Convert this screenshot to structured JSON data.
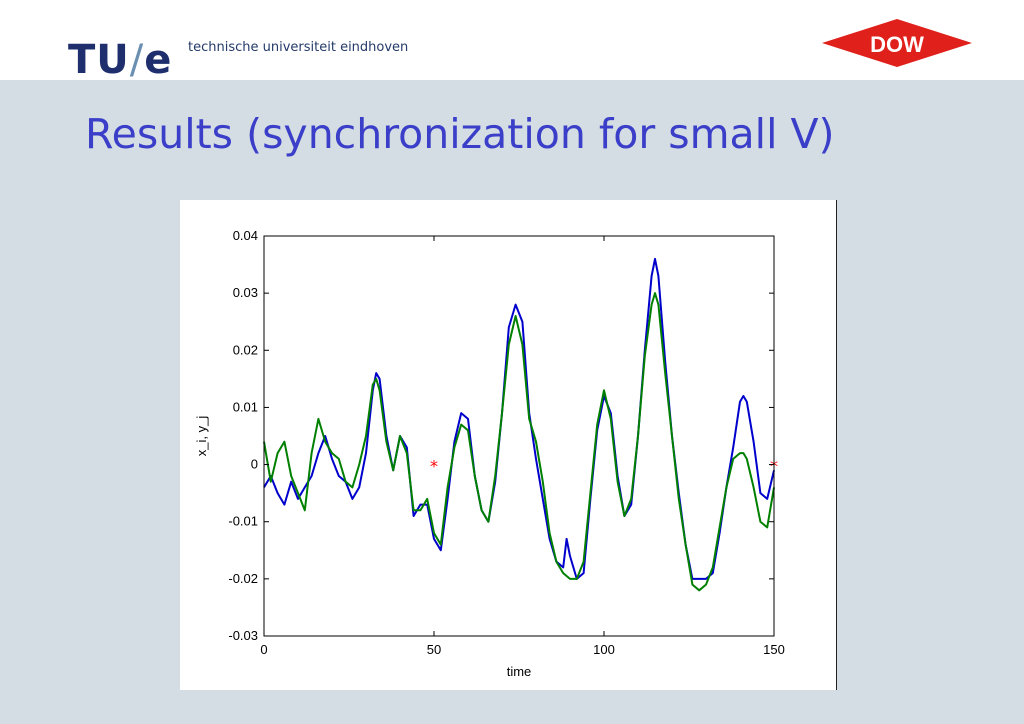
{
  "header": {
    "logo_main": "TU",
    "logo_slash": "/",
    "logo_e": "e",
    "university_name": "technische universiteit eindhoven",
    "sponsor_logo": "DOW"
  },
  "slide": {
    "title": "Results (synchronization for small V)"
  },
  "colors": {
    "title": "#3a3ec8",
    "series_blue": "#0000cc",
    "series_green": "#008000",
    "marker": "#ff0000",
    "dow_red": "#e0201b"
  },
  "chart_data": {
    "type": "line",
    "title": "",
    "xlabel": "time",
    "ylabel": "x_i, y_j",
    "xlim": [
      0,
      150
    ],
    "ylim": [
      -0.03,
      0.04
    ],
    "xticks": [
      "0",
      "50",
      "100",
      "150"
    ],
    "yticks": [
      "-0.03",
      "-0.02",
      "-0.01",
      "0",
      "0.01",
      "0.02",
      "0.03",
      "0.04"
    ],
    "grid": false,
    "series": [
      {
        "color": "#0000cc",
        "x": [
          0,
          2,
          4,
          6,
          8,
          10,
          12,
          14,
          16,
          18,
          20,
          22,
          24,
          26,
          28,
          30,
          32,
          33,
          34,
          36,
          38,
          40,
          42,
          44,
          46,
          48,
          50,
          52,
          54,
          56,
          58,
          60,
          62,
          64,
          66,
          68,
          70,
          72,
          74,
          76,
          78,
          80,
          82,
          84,
          86,
          88,
          89,
          90,
          92,
          94,
          96,
          98,
          100,
          102,
          104,
          106,
          108,
          110,
          112,
          114,
          115,
          116,
          118,
          120,
          122,
          124,
          126,
          128,
          130,
          132,
          134,
          136,
          138,
          140,
          141,
          142,
          144,
          146,
          148,
          150
        ],
        "y": [
          -0.004,
          -0.002,
          -0.005,
          -0.007,
          -0.003,
          -0.006,
          -0.004,
          -0.002,
          0.002,
          0.005,
          0.001,
          -0.002,
          -0.003,
          -0.006,
          -0.004,
          0.002,
          0.013,
          0.016,
          0.015,
          0.005,
          -0.001,
          0.005,
          0.003,
          -0.009,
          -0.007,
          -0.007,
          -0.013,
          -0.015,
          -0.006,
          0.004,
          0.009,
          0.008,
          -0.002,
          -0.008,
          -0.01,
          -0.003,
          0.009,
          0.024,
          0.028,
          0.025,
          0.009,
          0.001,
          -0.006,
          -0.013,
          -0.017,
          -0.018,
          -0.013,
          -0.016,
          -0.02,
          -0.019,
          -0.006,
          0.006,
          0.012,
          0.009,
          -0.002,
          -0.009,
          -0.007,
          0.005,
          0.02,
          0.033,
          0.036,
          0.033,
          0.018,
          0.005,
          -0.005,
          -0.014,
          -0.02,
          -0.02,
          -0.02,
          -0.019,
          -0.012,
          -0.004,
          0.003,
          0.011,
          0.012,
          0.011,
          0.004,
          -0.005,
          -0.006,
          -0.001
        ]
      },
      {
        "color": "#008000",
        "x": [
          0,
          2,
          4,
          6,
          8,
          10,
          12,
          14,
          16,
          18,
          20,
          22,
          24,
          26,
          28,
          30,
          32,
          33,
          34,
          36,
          38,
          40,
          42,
          44,
          46,
          48,
          50,
          52,
          54,
          56,
          58,
          60,
          62,
          64,
          66,
          68,
          70,
          72,
          74,
          76,
          78,
          80,
          82,
          84,
          86,
          88,
          90,
          92,
          94,
          96,
          98,
          100,
          102,
          104,
          106,
          108,
          110,
          112,
          114,
          115,
          116,
          118,
          120,
          122,
          124,
          126,
          128,
          130,
          132,
          134,
          136,
          138,
          140,
          141,
          142,
          144,
          146,
          148,
          150
        ],
        "y": [
          0.004,
          -0.003,
          0.002,
          0.004,
          -0.002,
          -0.005,
          -0.008,
          0.002,
          0.008,
          0.004,
          0.002,
          0.001,
          -0.003,
          -0.004,
          0.0,
          0.005,
          0.014,
          0.015,
          0.013,
          0.004,
          -0.001,
          0.005,
          0.002,
          -0.008,
          -0.008,
          -0.006,
          -0.012,
          -0.014,
          -0.004,
          0.003,
          0.007,
          0.006,
          -0.002,
          -0.008,
          -0.01,
          -0.002,
          0.009,
          0.021,
          0.026,
          0.021,
          0.008,
          0.004,
          -0.003,
          -0.012,
          -0.017,
          -0.019,
          -0.02,
          -0.02,
          -0.017,
          -0.005,
          0.007,
          0.013,
          0.008,
          -0.003,
          -0.009,
          -0.006,
          0.005,
          0.019,
          0.028,
          0.03,
          0.028,
          0.016,
          0.005,
          -0.006,
          -0.014,
          -0.021,
          -0.022,
          -0.021,
          -0.018,
          -0.011,
          -0.004,
          0.001,
          0.002,
          0.002,
          0.001,
          -0.004,
          -0.01,
          -0.011,
          -0.004
        ]
      }
    ],
    "markers": [
      {
        "x": 50,
        "y": 0,
        "symbol": "*",
        "color": "#ff0000"
      },
      {
        "x": 150,
        "y": 0,
        "symbol": "*",
        "color": "#ff0000"
      }
    ]
  }
}
